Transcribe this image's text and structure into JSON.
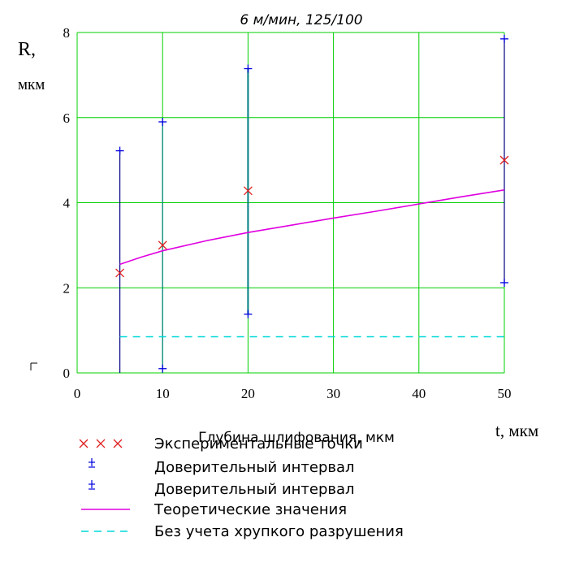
{
  "chart_data": {
    "type": "scatter",
    "title": "6 м/мин, 125/100",
    "ylabel_line1": "R,",
    "ylabel_line2": "мкм",
    "xlabel": "t, мкм",
    "xlabel_center": "Глубина шлифования, мкм",
    "xlim": [
      0,
      50
    ],
    "ylim": [
      0,
      8
    ],
    "xticks": [
      "0",
      "10",
      "20",
      "30",
      "40",
      "50"
    ],
    "yticks": [
      "0",
      "2",
      "4",
      "6",
      "8"
    ],
    "grid": true,
    "colors": {
      "grid": "#00d000",
      "experimental": "#e02020",
      "interval": "#0000e0",
      "interval_line": "#000080",
      "interval_line_teal": "#008080",
      "theoretical": "#e000e0",
      "no_brittle": "#00d8d8"
    },
    "series": [
      {
        "name": "Экспериментальные точки",
        "marker": "x",
        "x": [
          5,
          10,
          20,
          50
        ],
        "y": [
          2.35,
          3.0,
          4.28,
          5.0
        ]
      },
      {
        "name": "Доверительный интервал",
        "marker": "+",
        "x": [
          5,
          10,
          20,
          50
        ],
        "y_upper": [
          5.22,
          5.9,
          7.15,
          7.85
        ],
        "y_lower": [
          0,
          0.1,
          1.38,
          2.12
        ]
      },
      {
        "name": "Теоретические значения",
        "style": "solid",
        "x": [
          5,
          7.5,
          10,
          15,
          20,
          25,
          30,
          35,
          40,
          45,
          50
        ],
        "y": [
          2.55,
          2.72,
          2.87,
          3.1,
          3.3,
          3.47,
          3.64,
          3.8,
          3.97,
          4.14,
          4.3
        ]
      },
      {
        "name": "Без учета хрупкого разрушения",
        "style": "dashed",
        "x": [
          5,
          50
        ],
        "y": [
          0.85,
          0.85
        ]
      }
    ],
    "legend": {
      "placement": "bottom",
      "entries": [
        "Экспериментальные точки",
        "Доверительный интервал",
        "Доверительный интервал",
        "Теоретические значения",
        "Без учета хрупкого разрушения"
      ]
    }
  }
}
